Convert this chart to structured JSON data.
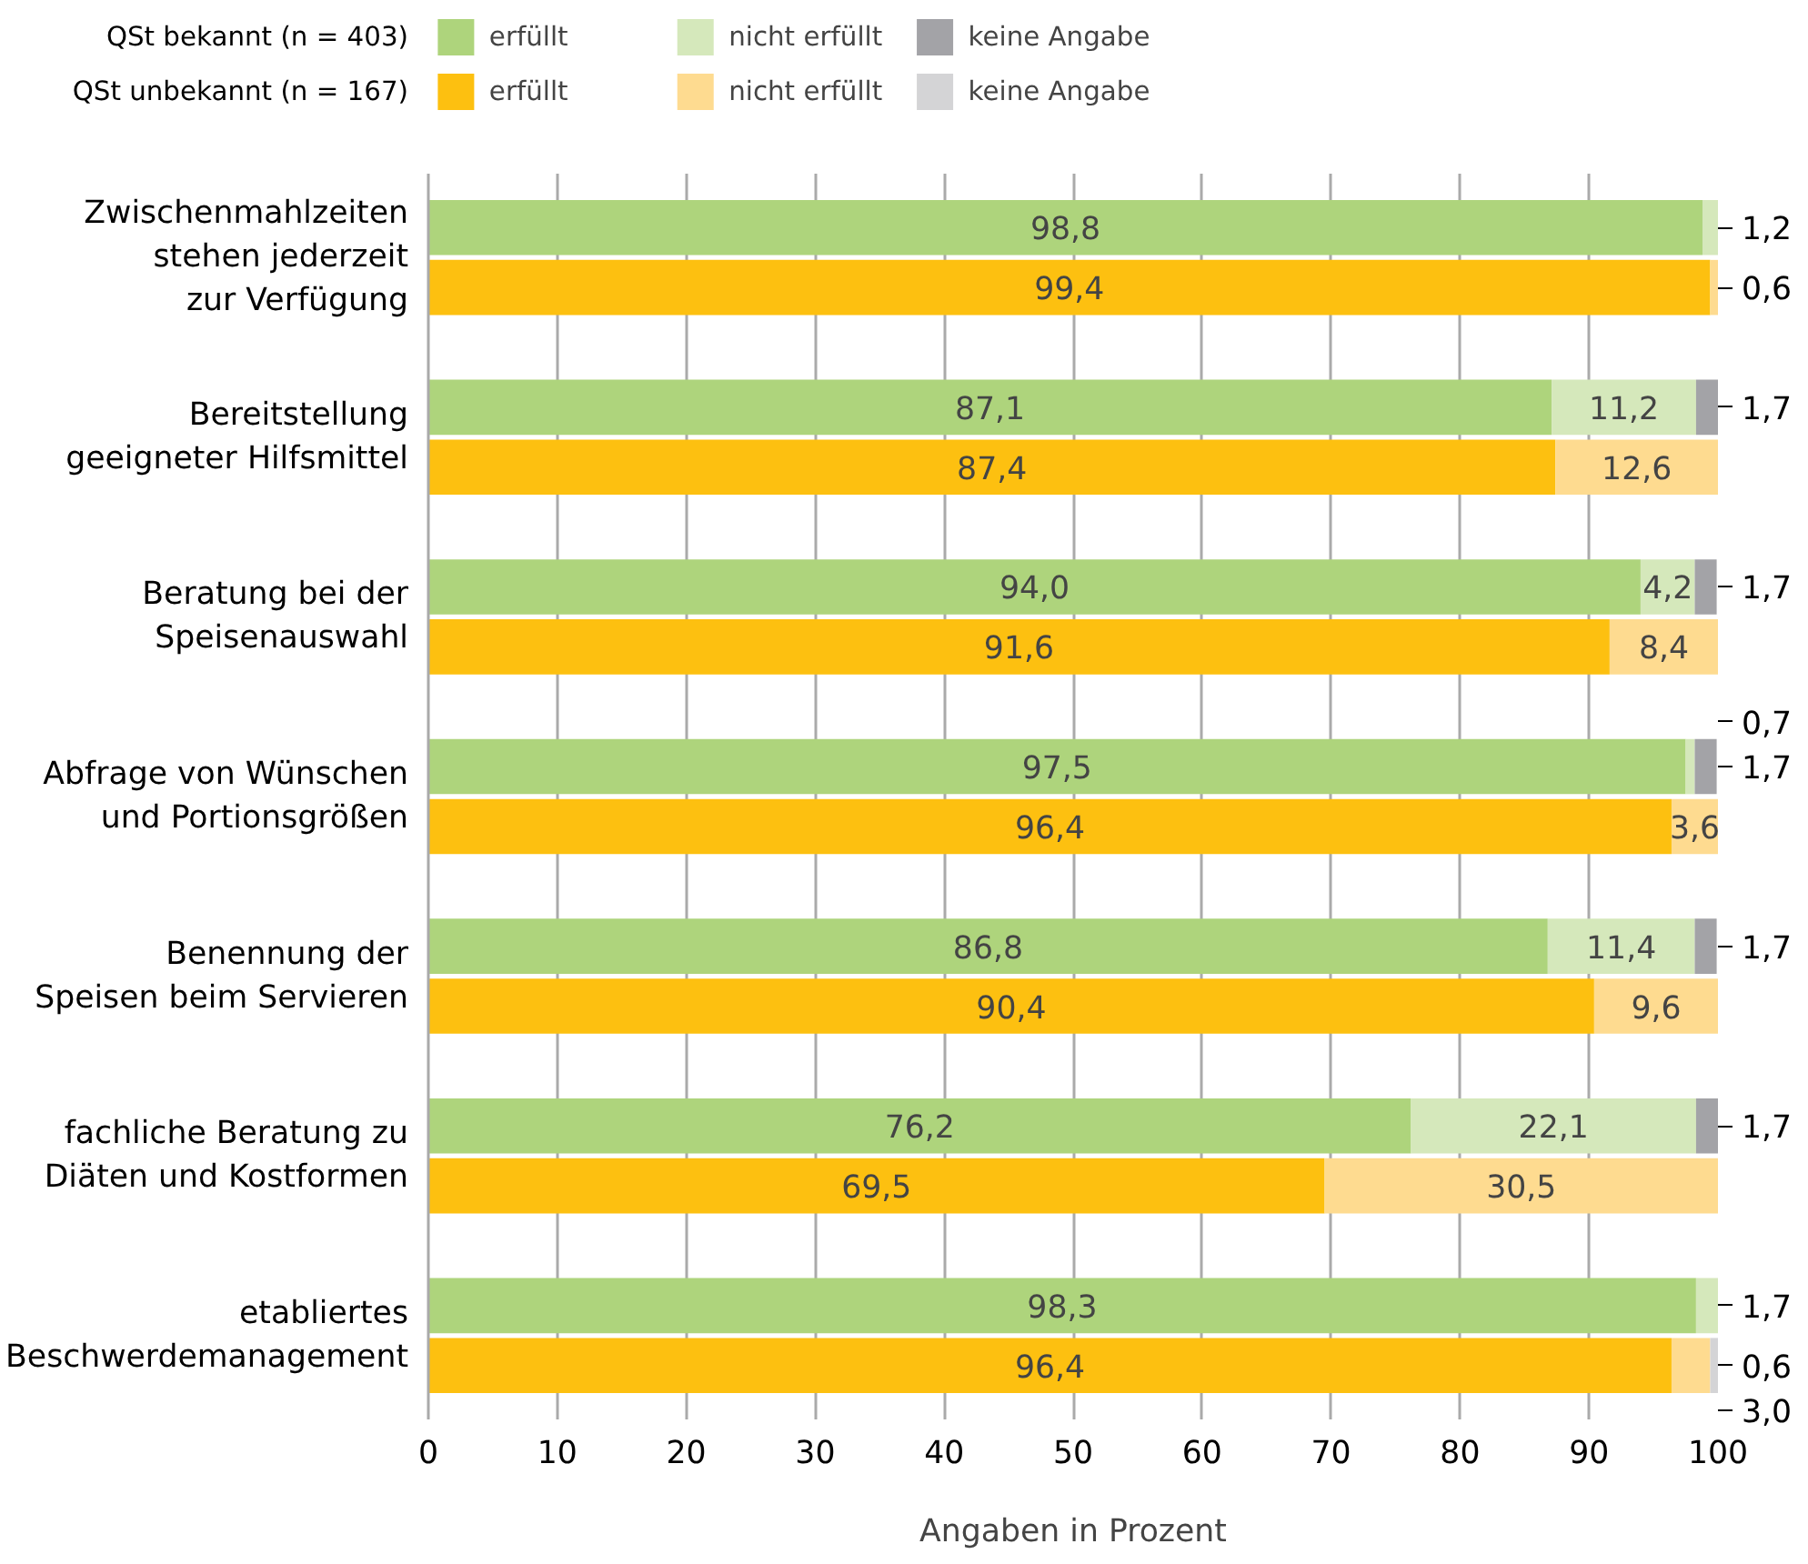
{
  "chart_data": {
    "type": "bar",
    "orientation": "horizontal",
    "stacked": true,
    "xlabel": "Angaben in Prozent",
    "categories": [
      "Zwischenmahlzeiten\nstehen jederzeit\nzur Verfügung",
      null,
      null,
      "Bereitstellung\ngeeigneter Hilfsmittel",
      null,
      null,
      "Beratung bei der\nSpeisenauswahl",
      null,
      null,
      "Abfrage von Wünschen\nund Portionsgrößen",
      null,
      null,
      "Benennung der\nSpeisen beim Servieren",
      null,
      null,
      "fachliche Beratung zu\nDiäten und Kostformen",
      null,
      null,
      "etabliertes\nBeschwerdemanagement",
      null
    ],
    "annotations": [
      "QSt bekannt (n = 403)",
      "QSt unbekannt (n = 167)"
    ],
    "series": [
      {
        "name": "erfüllt",
        "color": "#aed47c",
        "values": [
          98.8,
          null,
          null,
          87.1,
          null,
          null,
          94.0,
          null,
          null,
          97.5,
          null,
          null,
          86.8,
          null,
          null,
          76.2,
          null,
          null,
          98.3,
          null
        ],
        "value_labels": [
          "98,8",
          null,
          null,
          "87,1",
          null,
          null,
          "94,0",
          null,
          null,
          "97,5",
          null,
          null,
          "86,8",
          null,
          null,
          "76,2",
          null,
          null,
          "98,3",
          null
        ]
      },
      {
        "name": "nicht erfüllt",
        "color": "#d5e8bb",
        "values": [
          1.2,
          null,
          null,
          11.2,
          null,
          null,
          4.2,
          null,
          null,
          0.7,
          null,
          null,
          11.4,
          null,
          null,
          22.1,
          null,
          null,
          1.7,
          null
        ],
        "value_labels": [
          "1,2",
          null,
          null,
          "11,2",
          null,
          null,
          "4,2",
          null,
          null,
          "0,7",
          null,
          null,
          "11,4",
          null,
          null,
          "22,1",
          null,
          null,
          "1,7",
          null
        ]
      },
      {
        "name": "keine Angabe",
        "color": "#a3a3a7",
        "values": [
          null,
          null,
          null,
          1.7,
          null,
          null,
          1.7,
          null,
          null,
          1.7,
          null,
          null,
          1.7,
          null,
          null,
          1.7,
          null,
          null,
          null,
          null
        ],
        "value_labels": [
          null,
          null,
          null,
          "1,7",
          null,
          null,
          "1,7",
          null,
          null,
          "1,7",
          null,
          null,
          "1,7",
          null,
          null,
          "1,7",
          null,
          null,
          null,
          null
        ]
      },
      {
        "name": "erfüllt",
        "color": "#fdc010",
        "values": [
          null,
          99.4,
          null,
          null,
          87.4,
          null,
          null,
          91.6,
          null,
          null,
          96.4,
          null,
          null,
          90.4,
          null,
          null,
          69.5,
          null,
          null,
          96.4
        ],
        "value_labels": [
          null,
          "99,4",
          null,
          null,
          "87,4",
          null,
          null,
          "91,6",
          null,
          null,
          "96,4",
          null,
          null,
          "90,4",
          null,
          null,
          "69,5",
          null,
          null,
          "96,4"
        ]
      },
      {
        "name": "nicht erfüllt",
        "color": "#fedb90",
        "values": [
          null,
          0.6,
          null,
          null,
          12.6,
          null,
          null,
          8.4,
          null,
          null,
          3.6,
          null,
          null,
          9.6,
          null,
          null,
          30.5,
          null,
          null,
          3.0
        ],
        "value_labels": [
          null,
          "0,6",
          null,
          null,
          "12,6",
          null,
          null,
          "8,4",
          null,
          null,
          "3,6",
          null,
          null,
          "9,6",
          null,
          null,
          "30,5",
          null,
          null,
          "3,0"
        ]
      },
      {
        "name": "keine Angabe",
        "color": "#d4d4d6",
        "values": [
          null,
          null,
          null,
          null,
          null,
          null,
          null,
          null,
          null,
          null,
          null,
          null,
          null,
          null,
          null,
          null,
          null,
          null,
          null,
          0.6
        ],
        "value_labels": [
          null,
          null,
          null,
          null,
          null,
          null,
          null,
          null,
          null,
          null,
          null,
          null,
          null,
          null,
          null,
          null,
          null,
          null,
          null,
          "0,6"
        ]
      }
    ],
    "xlim": [
      0,
      100
    ],
    "xticks": [
      0,
      10,
      20,
      30,
      40,
      50,
      60,
      70,
      80,
      90,
      100
    ],
    "grid": "x",
    "legend": "top"
  }
}
